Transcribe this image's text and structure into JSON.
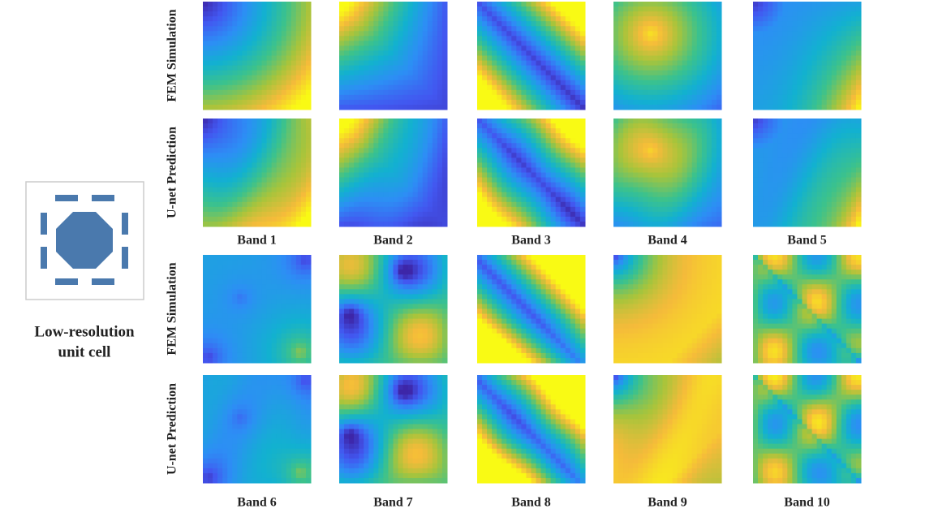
{
  "unit_cell": {
    "label_lines": [
      "Low-resolution",
      "unit cell"
    ]
  },
  "groups": [
    {
      "rows": [
        "FEM Simulation",
        "U-net Prediction"
      ],
      "bands": [
        "Band 1",
        "Band 2",
        "Band 3",
        "Band 4",
        "Band 5"
      ]
    },
    {
      "rows": [
        "FEM Simulation",
        "U-net Prediction"
      ],
      "bands": [
        "Band 6",
        "Band 7",
        "Band 8",
        "Band 9",
        "Band 10"
      ]
    }
  ]
}
